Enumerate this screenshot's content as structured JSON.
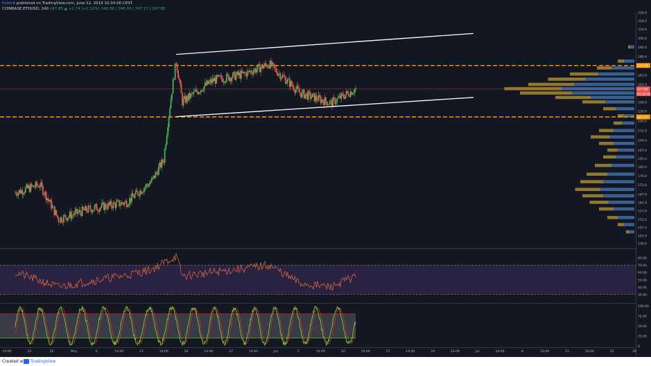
{
  "header": {
    "author": "ltcbtc8",
    "published": "published on TradingView.com, June 12, 2019 10:34:00 CEST",
    "symbol": "COINBASE:ETHUSD, 240",
    "last": "247.85",
    "change": "▲ +2.74 (+1.12%)",
    "ohlc": "248.39 | 248.39 | 247.17 | 247.85"
  },
  "footer": {
    "created_with": "Created with",
    "brand": "TradingView"
  },
  "colors": {
    "background": "#131722",
    "up_candle": "#4caf50",
    "down_candle": "#ef5350",
    "level_line": "#ff9800",
    "channel_line": "#ffffff",
    "volume_profile_up": "#3e6fa6",
    "volume_profile_down": "#a88a30",
    "rsi_line": "#d5643b",
    "rsi_band": "#2e2346",
    "stoch_k": "#68c633",
    "stoch_d": "#d8262a",
    "price_tag_blue": "#2962ff",
    "price_tag_red": "#ef5350"
  },
  "chart_data": [
    {
      "type": "candlestick",
      "panel": "price",
      "symbol": "COINBASE:ETHUSD",
      "timeframe": "240",
      "y_scale": "log",
      "ylim": [
        137,
        330
      ],
      "y_ticks": [
        139.0,
        143.0,
        147.5,
        152.0,
        157.0,
        162.0,
        167.0,
        173.0,
        179.0,
        185.0,
        191.0,
        197.0,
        204.5,
        212.0,
        220.0,
        228.0,
        236.0,
        244.0,
        252.0,
        261.0,
        270.0,
        280.0,
        290.0,
        300.0,
        310.0,
        320.0,
        330.0
      ],
      "x_ticks": [
        "14:00",
        "22",
        "26",
        "May",
        "6",
        "14:00",
        "13",
        "14:00",
        "20",
        "14:00",
        "27",
        "14:00",
        "Jun",
        "5",
        "14:00",
        "10",
        "14:00",
        "17",
        "14:00",
        "24",
        "14:00",
        "Jul",
        "14:00",
        "8",
        "14:00",
        "15",
        "14:00",
        "22",
        "26"
      ],
      "key_points": [
        {
          "date": "Apr 18",
          "price": 168
        },
        {
          "date": "Apr 22",
          "price": 173
        },
        {
          "date": "Apr 25",
          "price": 152
        },
        {
          "date": "Apr 30",
          "price": 158
        },
        {
          "date": "May 6",
          "price": 162
        },
        {
          "date": "May 10",
          "price": 175
        },
        {
          "date": "May 12",
          "price": 190
        },
        {
          "date": "May 14",
          "price": 275
        },
        {
          "date": "May 15",
          "price": 236
        },
        {
          "date": "May 20",
          "price": 256
        },
        {
          "date": "May 25",
          "price": 262
        },
        {
          "date": "May 29",
          "price": 272
        },
        {
          "date": "May 30",
          "price": 266
        },
        {
          "date": "Jun 3",
          "price": 244
        },
        {
          "date": "Jun 8",
          "price": 235
        },
        {
          "date": "Jun 12",
          "price": 247.85
        }
      ],
      "levels": [
        {
          "label": "270.48",
          "price": 270.48,
          "style": "dashed"
        },
        {
          "label": "223.07",
          "price": 223.07,
          "style": "dashed"
        }
      ],
      "channel": {
        "upper": [
          {
            "date": "May 14",
            "price": 282
          },
          {
            "date": "Jul 1",
            "price": 305
          }
        ],
        "lower": [
          {
            "date": "May 14",
            "price": 223.3
          },
          {
            "date": "Jul 1",
            "price": 240
          }
        ]
      },
      "price_tags": [
        {
          "label": "270.48",
          "kind": "level"
        },
        {
          "label": "247.85",
          "kind": "last"
        },
        {
          "label": "03:26:01",
          "kind": "countdown"
        },
        {
          "label": "223.07",
          "kind": "level"
        }
      ],
      "volume_profile": {
        "rows": [
          {
            "price": 290,
            "up": 0.04,
            "down": 0.02
          },
          {
            "price": 275,
            "up": 0.1,
            "down": 0.06
          },
          {
            "price": 268,
            "up": 0.22,
            "down": 0.14
          },
          {
            "price": 262,
            "up": 0.35,
            "down": 0.27
          },
          {
            "price": 257,
            "up": 0.47,
            "down": 0.36
          },
          {
            "price": 252,
            "up": 0.58,
            "down": 0.44
          },
          {
            "price": 248,
            "up": 0.7,
            "down": 0.55
          },
          {
            "price": 244,
            "up": 0.6,
            "down": 0.5
          },
          {
            "price": 240,
            "up": 0.42,
            "down": 0.34
          },
          {
            "price": 236,
            "up": 0.28,
            "down": 0.22
          },
          {
            "price": 230,
            "up": 0.18,
            "down": 0.12
          },
          {
            "price": 224,
            "up": 0.1,
            "down": 0.06
          },
          {
            "price": 218,
            "up": 0.12,
            "down": 0.08
          },
          {
            "price": 212,
            "up": 0.2,
            "down": 0.14
          },
          {
            "price": 207,
            "up": 0.24,
            "down": 0.18
          },
          {
            "price": 202,
            "up": 0.2,
            "down": 0.14
          },
          {
            "price": 197,
            "up": 0.16,
            "down": 0.1
          },
          {
            "price": 192,
            "up": 0.18,
            "down": 0.12
          },
          {
            "price": 186,
            "up": 0.22,
            "down": 0.16
          },
          {
            "price": 180,
            "up": 0.26,
            "down": 0.2
          },
          {
            "price": 175,
            "up": 0.3,
            "down": 0.22
          },
          {
            "price": 170,
            "up": 0.33,
            "down": 0.24
          },
          {
            "price": 166,
            "up": 0.3,
            "down": 0.2
          },
          {
            "price": 162,
            "up": 0.25,
            "down": 0.18
          },
          {
            "price": 158,
            "up": 0.2,
            "down": 0.14
          },
          {
            "price": 153,
            "up": 0.16,
            "down": 0.1
          },
          {
            "price": 149,
            "up": 0.1,
            "down": 0.06
          },
          {
            "price": 145,
            "up": 0.05,
            "down": 0.03
          }
        ]
      }
    },
    {
      "type": "line",
      "panel": "rsi",
      "ylim": [
        20,
        90
      ],
      "y_ticks": [
        30.0,
        40.0,
        50.0,
        60.0,
        70.0,
        80.0
      ],
      "band": [
        30,
        70
      ],
      "key_points": [
        {
          "date": "Apr 18",
          "value": 60
        },
        {
          "date": "Apr 25",
          "value": 40
        },
        {
          "date": "Apr 30",
          "value": 48
        },
        {
          "date": "May 6",
          "value": 56
        },
        {
          "date": "May 10",
          "value": 64
        },
        {
          "date": "May 14",
          "value": 82
        },
        {
          "date": "May 15",
          "value": 55
        },
        {
          "date": "May 20",
          "value": 60
        },
        {
          "date": "May 29",
          "value": 70
        },
        {
          "date": "Jun 3",
          "value": 45
        },
        {
          "date": "Jun 8",
          "value": 40
        },
        {
          "date": "Jun 12",
          "value": 55
        }
      ]
    },
    {
      "type": "line",
      "panel": "stochastic",
      "ylim": [
        0,
        100
      ],
      "y_ticks": [
        0,
        25.0,
        50.0,
        75.0,
        100.0
      ],
      "bands": [
        20,
        80
      ],
      "series": [
        {
          "name": "",
          "role": "k",
          "color": "#68c633"
        },
        {
          "name": "",
          "role": "d",
          "color": "#d8262a"
        }
      ],
      "oscillation_cycles": 16,
      "range": [
        5,
        95
      ]
    }
  ]
}
